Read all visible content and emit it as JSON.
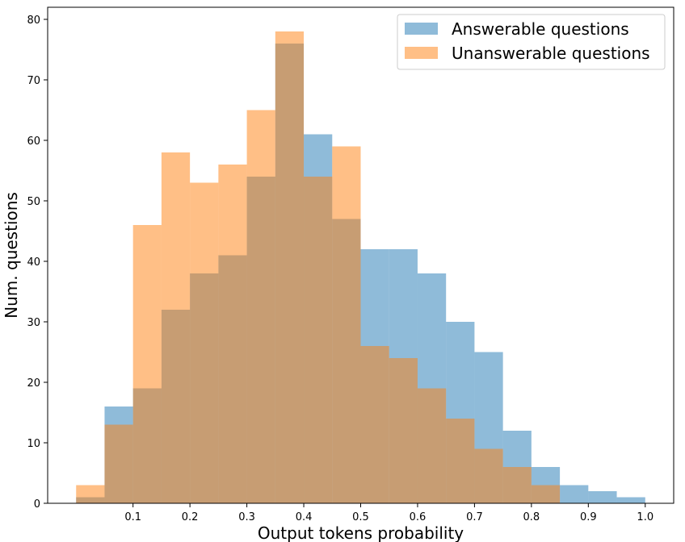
{
  "chart_data": {
    "type": "bar",
    "subtype": "overlapping-histogram",
    "title": "",
    "xlabel": "Output tokens probability",
    "ylabel": "Num. questions",
    "bin_edges": [
      0.0,
      0.05,
      0.1,
      0.15,
      0.2,
      0.25,
      0.3,
      0.35,
      0.4,
      0.45,
      0.5,
      0.55,
      0.6,
      0.65,
      0.7,
      0.75,
      0.8,
      0.85,
      0.9,
      0.95,
      1.0
    ],
    "xlim": [
      -0.05,
      1.05
    ],
    "ylim": [
      0,
      82
    ],
    "xticks": [
      0.1,
      0.2,
      0.3,
      0.4,
      0.5,
      0.6,
      0.7,
      0.8,
      0.9,
      1.0
    ],
    "xtick_labels": [
      "0.1",
      "0.2",
      "0.3",
      "0.4",
      "0.5",
      "0.6",
      "0.7",
      "0.8",
      "0.9",
      "1.0"
    ],
    "yticks": [
      0,
      10,
      20,
      30,
      40,
      50,
      60,
      70,
      80
    ],
    "ytick_labels": [
      "0",
      "10",
      "20",
      "30",
      "40",
      "50",
      "60",
      "70",
      "80"
    ],
    "grid": false,
    "legend_position": "top-right",
    "series": [
      {
        "name": "Answerable questions",
        "color": "#1f77b4",
        "alpha": 0.5,
        "values": [
          1,
          16,
          19,
          32,
          38,
          41,
          54,
          76,
          61,
          47,
          42,
          42,
          38,
          30,
          25,
          12,
          6,
          3,
          2,
          1
        ]
      },
      {
        "name": "Unanswerable questions",
        "color": "#ff7f0e",
        "alpha": 0.5,
        "values": [
          3,
          13,
          46,
          58,
          53,
          56,
          65,
          78,
          54,
          59,
          26,
          24,
          19,
          14,
          9,
          6,
          3,
          0,
          0,
          0
        ]
      }
    ]
  }
}
